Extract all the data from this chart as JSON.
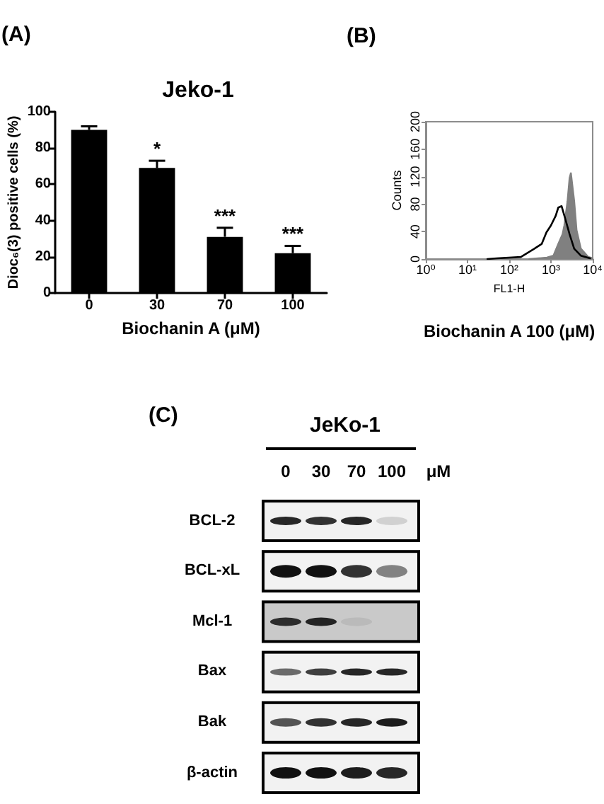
{
  "chart_data": [
    {
      "type": "bar",
      "title": "Jeko-1",
      "categories": [
        "0",
        "30",
        "70",
        "100"
      ],
      "values": [
        90,
        69,
        31,
        22
      ],
      "errors": [
        [
          90,
          92
        ],
        [
          69,
          73
        ],
        [
          31,
          36
        ],
        [
          22,
          26
        ]
      ],
      "color": "#000000",
      "xlabel": "Biochanin A (μM)",
      "ylabel": "Dioc₆(3) positive cells (%)",
      "ylim": [
        0,
        100
      ],
      "yticks": [
        0,
        20,
        40,
        60,
        80,
        100
      ],
      "grid": false,
      "annotations": [
        "(A)",
        {
          "text": "*",
          "x": "30",
          "y": 73
        },
        {
          "text": "***",
          "x": "70",
          "y": 36
        },
        {
          "text": "***",
          "x": "100",
          "y": 26
        }
      ]
    },
    {
      "type": "line",
      "series": [
        {
          "type": "area",
          "color": "#808080",
          "x": [
            300,
            800,
            1150,
            1500,
            1900,
            2100,
            2500,
            2800,
            3000,
            3600,
            4100,
            5200,
            7800,
            10000
          ],
          "values": [
            0,
            2,
            5,
            22,
            36,
            49,
            84,
            118,
            125,
            84,
            42,
            15,
            3,
            1
          ]
        },
        {
          "type": "line",
          "color": "#000000",
          "x": [
            30,
            50,
            190,
            400,
            600,
            780,
            1000,
            1300,
            1500,
            1800,
            2100,
            2800,
            3600,
            5200,
            8700
          ],
          "values": [
            0,
            1,
            3,
            15,
            22,
            39,
            49,
            63,
            75,
            77,
            63,
            36,
            15,
            5,
            1
          ]
        }
      ],
      "xlabel": "FL1-H",
      "ylabel": "Counts",
      "log": "x",
      "xlim": [
        1,
        10000
      ],
      "xticks": [
        {
          "value": 1,
          "label": "10⁰"
        },
        {
          "value": 10,
          "label": "10¹"
        },
        {
          "value": 100,
          "label": "10²"
        },
        {
          "value": 1000,
          "label": "10³"
        },
        {
          "value": 10000,
          "label": "10⁴"
        }
      ],
      "ylim": [
        0,
        200
      ],
      "yticks": [
        0,
        40,
        80,
        120,
        160,
        200
      ],
      "grid": false,
      "marker": "none",
      "annotations": [
        "(B)",
        "Biochanin A 100 (μM)"
      ]
    },
    {
      "type": "other",
      "title": "JeKo-1",
      "categories": [
        "0",
        "30",
        "70",
        "100"
      ],
      "xlabel": "μM",
      "y_categories": [
        "BCL-2",
        "BCL-xL",
        "Mcl-1",
        "Bax",
        "Bak",
        "β-actin"
      ],
      "annotations": [
        "(C)"
      ]
    }
  ]
}
